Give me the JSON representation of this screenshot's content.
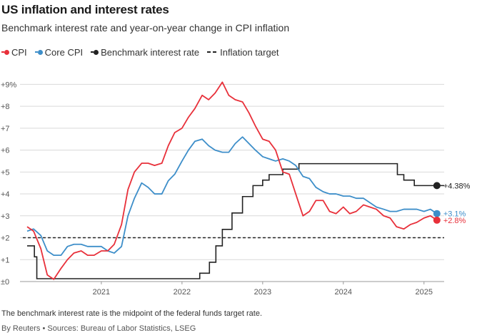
{
  "title": "US inflation and interest rates",
  "subtitle": "Benchmark interest rate and year-on-year change in CPI inflation",
  "legend": {
    "cpi": "CPI",
    "core": "Core CPI",
    "bench": "Benchmark interest rate",
    "target": "Inflation target"
  },
  "footnote": "The benchmark interest rate is the midpoint of the federal funds target rate.",
  "source": "By Reuters • Sources: Bureau of Labor Statistics, LSEG",
  "colors": {
    "cpi": "#e8303a",
    "core": "#3d8ec9",
    "bench": "#222222",
    "target": "#222222",
    "grid": "#d9d9d9"
  },
  "chart_data": {
    "type": "line",
    "title": "US inflation and interest rates",
    "subtitle": "Benchmark interest rate and year-on-year change in CPI inflation",
    "xlabel": "",
    "ylabel": "",
    "ylim": [
      0,
      9.5
    ],
    "xlim": [
      2020.08,
      2025.25
    ],
    "grid": "horizontal",
    "legend_position": "top-left",
    "y_ticks": [
      "±0",
      "+1",
      "+2",
      "+3",
      "+4",
      "+5",
      "+6",
      "+7",
      "+8",
      "+9%"
    ],
    "y_tick_values": [
      0,
      1,
      2,
      3,
      4,
      5,
      6,
      7,
      8,
      9
    ],
    "x_ticks": [
      "2021",
      "2022",
      "2023",
      "2024",
      "2025"
    ],
    "x_tick_values": [
      2021,
      2022,
      2023,
      2024,
      2025
    ],
    "series": [
      {
        "name": "CPI",
        "key": "cpi",
        "x": [
          2020.0,
          2020.08,
          2020.17,
          2020.25,
          2020.33,
          2020.42,
          2020.5,
          2020.58,
          2020.67,
          2020.75,
          2020.83,
          2020.92,
          2021.0,
          2021.08,
          2021.17,
          2021.25,
          2021.33,
          2021.42,
          2021.5,
          2021.58,
          2021.67,
          2021.75,
          2021.83,
          2021.92,
          2022.0,
          2022.08,
          2022.17,
          2022.25,
          2022.33,
          2022.42,
          2022.5,
          2022.58,
          2022.67,
          2022.75,
          2022.83,
          2022.92,
          2023.0,
          2023.08,
          2023.17,
          2023.25,
          2023.33,
          2023.42,
          2023.5,
          2023.58,
          2023.67,
          2023.75,
          2023.83,
          2023.92,
          2024.0,
          2024.08,
          2024.17,
          2024.25,
          2024.33,
          2024.42,
          2024.5,
          2024.58,
          2024.67,
          2024.75,
          2024.83,
          2024.92,
          2025.0,
          2025.08
        ],
        "y": [
          2.5,
          2.3,
          1.5,
          0.3,
          0.1,
          0.6,
          1.0,
          1.3,
          1.4,
          1.2,
          1.2,
          1.4,
          1.4,
          1.7,
          2.6,
          4.2,
          5.0,
          5.4,
          5.4,
          5.3,
          5.4,
          6.2,
          6.8,
          7.0,
          7.5,
          7.9,
          8.5,
          8.3,
          8.6,
          9.1,
          8.5,
          8.3,
          8.2,
          7.7,
          7.1,
          6.5,
          6.4,
          6.0,
          5.0,
          4.9,
          4.0,
          3.0,
          3.2,
          3.7,
          3.7,
          3.2,
          3.1,
          3.4,
          3.1,
          3.2,
          3.5,
          3.4,
          3.3,
          3.0,
          2.9,
          2.5,
          2.4,
          2.6,
          2.7,
          2.9,
          3.0,
          2.8
        ],
        "end_label": "+2.8%",
        "end_value": 2.8
      },
      {
        "name": "Core CPI",
        "key": "core",
        "x": [
          2020.0,
          2020.08,
          2020.17,
          2020.25,
          2020.33,
          2020.42,
          2020.5,
          2020.58,
          2020.67,
          2020.75,
          2020.83,
          2020.92,
          2021.0,
          2021.08,
          2021.17,
          2021.25,
          2021.33,
          2021.42,
          2021.5,
          2021.58,
          2021.67,
          2021.75,
          2021.83,
          2021.92,
          2022.0,
          2022.08,
          2022.17,
          2022.25,
          2022.33,
          2022.42,
          2022.5,
          2022.58,
          2022.67,
          2022.75,
          2022.83,
          2022.92,
          2023.0,
          2023.08,
          2023.17,
          2023.25,
          2023.33,
          2023.42,
          2023.5,
          2023.58,
          2023.67,
          2023.75,
          2023.83,
          2023.92,
          2024.0,
          2024.08,
          2024.17,
          2024.25,
          2024.33,
          2024.42,
          2024.5,
          2024.58,
          2024.67,
          2024.75,
          2024.83,
          2024.92,
          2025.0,
          2025.08
        ],
        "y": [
          2.3,
          2.4,
          2.1,
          1.4,
          1.2,
          1.2,
          1.6,
          1.7,
          1.7,
          1.6,
          1.6,
          1.6,
          1.4,
          1.3,
          1.6,
          3.0,
          3.8,
          4.5,
          4.3,
          4.0,
          4.0,
          4.6,
          4.9,
          5.5,
          6.0,
          6.4,
          6.5,
          6.2,
          6.0,
          5.9,
          5.9,
          6.3,
          6.6,
          6.3,
          6.0,
          5.7,
          5.6,
          5.5,
          5.6,
          5.5,
          5.3,
          4.8,
          4.7,
          4.3,
          4.1,
          4.0,
          4.0,
          3.9,
          3.9,
          3.8,
          3.8,
          3.6,
          3.4,
          3.3,
          3.2,
          3.2,
          3.3,
          3.3,
          3.3,
          3.2,
          3.3,
          3.1
        ],
        "end_label": "+3.1%",
        "end_value": 3.1
      },
      {
        "name": "Benchmark interest rate",
        "key": "bench",
        "step": true,
        "x": [
          2020.08,
          2020.17,
          2020.2,
          2022.22,
          2022.34,
          2022.42,
          2022.5,
          2022.62,
          2022.75,
          2022.88,
          2023.0,
          2023.08,
          2023.25,
          2023.33,
          2023.45,
          2024.67,
          2024.75,
          2024.88,
          2025.25
        ],
        "y": [
          1.63,
          1.13,
          0.13,
          0.38,
          0.88,
          1.63,
          2.38,
          3.13,
          3.88,
          4.38,
          4.63,
          4.88,
          5.13,
          5.13,
          5.38,
          4.88,
          4.63,
          4.38,
          4.38
        ],
        "end_label": "+4.38%",
        "end_value": 4.38
      },
      {
        "name": "Inflation target",
        "key": "target",
        "dashed": true,
        "x": [
          2020.08,
          2025.25
        ],
        "y": [
          2,
          2
        ]
      }
    ]
  }
}
